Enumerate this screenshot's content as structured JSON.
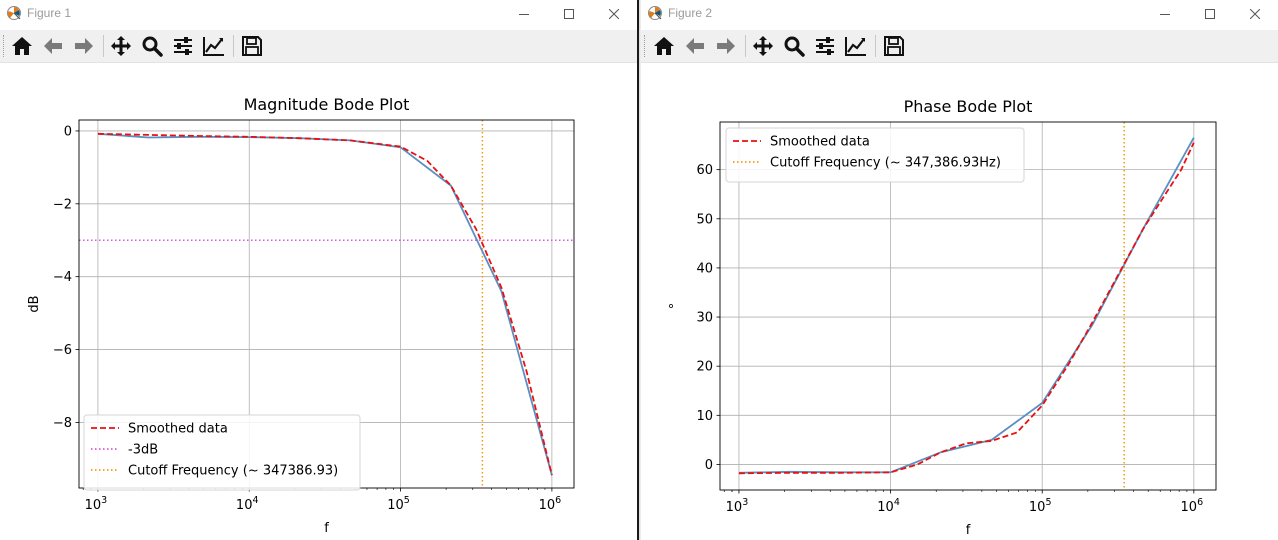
{
  "windows": [
    {
      "title": "Figure 1",
      "toolbar": [
        "home-icon",
        "back-arrow-icon",
        "forward-arrow-icon",
        "pan-icon",
        "zoom-icon",
        "configure-subplots-icon",
        "edit-axis-icon",
        "save-icon"
      ]
    },
    {
      "title": "Figure 2",
      "toolbar": [
        "home-icon",
        "back-arrow-icon",
        "forward-arrow-icon",
        "pan-icon",
        "zoom-icon",
        "configure-subplots-icon",
        "edit-axis-icon",
        "save-icon"
      ]
    }
  ],
  "colors": {
    "raw": "#5b8fc2",
    "smoothed": "#e8110f",
    "minus3db": "#dd55dd",
    "cutoff": "#f39c12",
    "grid": "#b0b0b0"
  },
  "chart_data": [
    {
      "type": "line",
      "title": "Magnitude Bode Plot",
      "xlabel": "f",
      "ylabel": "dB",
      "xscale": "log",
      "xlim": [
        750,
        1400000
      ],
      "ylim": [
        -9.8,
        0.3
      ],
      "xtick_base": "10",
      "xticks": [
        {
          "value": 1000,
          "exp": "3"
        },
        {
          "value": 10000,
          "exp": "4"
        },
        {
          "value": 100000,
          "exp": "5"
        },
        {
          "value": 1000000,
          "exp": "6"
        }
      ],
      "yticks": [
        {
          "value": 0,
          "label": "0"
        },
        {
          "value": -2,
          "label": "−2"
        },
        {
          "value": -4,
          "label": "−4"
        },
        {
          "value": -6,
          "label": "−6"
        },
        {
          "value": -8,
          "label": "−8"
        }
      ],
      "grid": true,
      "legend_position": "lower-left",
      "series": [
        {
          "role": "raw",
          "x": [
            1000,
            2150,
            4640,
            10000,
            21500,
            46400,
            100000,
            215000,
            464000,
            1000000
          ],
          "y": [
            -0.08,
            -0.18,
            -0.16,
            -0.17,
            -0.2,
            -0.26,
            -0.45,
            -1.5,
            -4.4,
            -9.45
          ]
        },
        {
          "role": "smoothed",
          "name": "Smoothed data",
          "x": [
            1000,
            2150,
            4640,
            10000,
            21500,
            46400,
            100000,
            150000,
            215000,
            316000,
            464000,
            681000,
            1000000
          ],
          "y": [
            -0.08,
            -0.11,
            -0.14,
            -0.16,
            -0.2,
            -0.26,
            -0.43,
            -0.82,
            -1.5,
            -2.7,
            -4.3,
            -6.6,
            -9.45
          ]
        }
      ],
      "hline": {
        "name": "-3dB",
        "y": -3
      },
      "vline": {
        "name": "Cutoff Frequency (~ 347386.93)",
        "x": 347386.93
      }
    },
    {
      "type": "line",
      "title": "Phase Bode Plot",
      "xlabel": "f",
      "ylabel": "°",
      "xscale": "log",
      "xlim": [
        750,
        1400000
      ],
      "ylim": [
        -5.2,
        69.7
      ],
      "xtick_base": "10",
      "xticks": [
        {
          "value": 1000,
          "exp": "3"
        },
        {
          "value": 10000,
          "exp": "4"
        },
        {
          "value": 100000,
          "exp": "5"
        },
        {
          "value": 1000000,
          "exp": "6"
        }
      ],
      "yticks": [
        {
          "value": 0,
          "label": "0"
        },
        {
          "value": 10,
          "label": "10"
        },
        {
          "value": 20,
          "label": "20"
        },
        {
          "value": 30,
          "label": "30"
        },
        {
          "value": 40,
          "label": "40"
        },
        {
          "value": 50,
          "label": "50"
        },
        {
          "value": 60,
          "label": "60"
        }
      ],
      "grid": true,
      "legend_position": "upper-left",
      "series": [
        {
          "role": "raw",
          "x": [
            1000,
            2150,
            4640,
            10000,
            21500,
            46400,
            100000,
            215000,
            464000,
            1000000
          ],
          "y": [
            -1.7,
            -1.5,
            -1.6,
            -1.6,
            2.5,
            5.0,
            12.5,
            28.5,
            48.0,
            66.5
          ]
        },
        {
          "role": "smoothed",
          "name": "Smoothed data",
          "x": [
            1000,
            2150,
            4640,
            10000,
            15000,
            21500,
            31600,
            46400,
            68100,
            100000,
            150000,
            215000,
            316000,
            464000,
            681000,
            825000,
            1000000
          ],
          "y": [
            -1.8,
            -1.7,
            -1.7,
            -1.6,
            0.0,
            2.5,
            4.3,
            4.8,
            6.5,
            12.0,
            20.5,
            29.0,
            38.5,
            48.0,
            56.0,
            60.0,
            65.5
          ]
        }
      ],
      "vline": {
        "name": "Cutoff Frequency (~ 347,386.93Hz)",
        "x": 347386.93
      }
    }
  ]
}
